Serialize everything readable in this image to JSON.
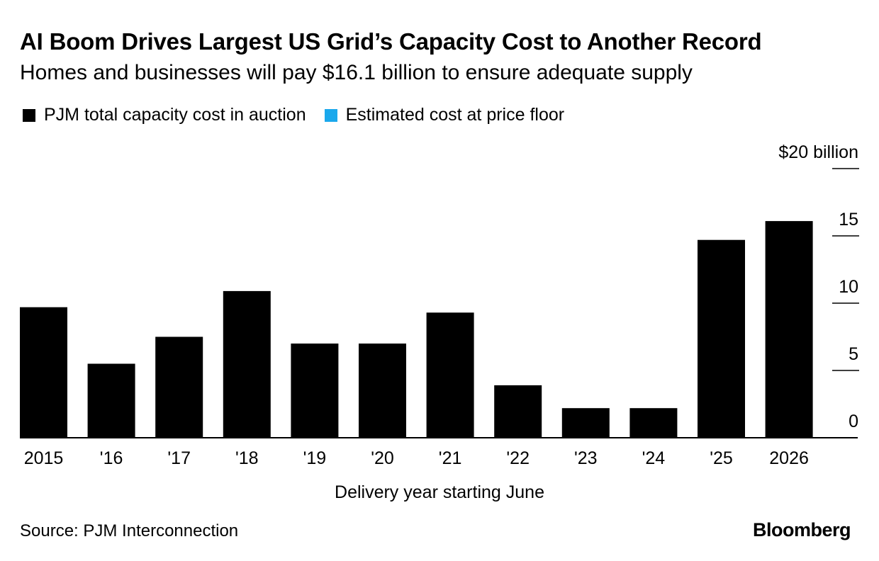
{
  "title": "AI Boom Drives Largest US Grid’s Capacity Cost to Another Record",
  "subtitle": "Homes and businesses will pay $16.1 billion to ensure adequate supply",
  "legend": [
    {
      "label": "PJM total capacity cost in auction",
      "color": "#000000"
    },
    {
      "label": "Estimated cost at price floor",
      "color": "#1aa8ec"
    }
  ],
  "source": "Source: PJM Interconnection",
  "brand": "Bloomberg",
  "chart_data": {
    "type": "bar",
    "categories": [
      "2015",
      "'16",
      "'17",
      "'18",
      "'19",
      "'20",
      "'21",
      "'22",
      "'23",
      "'24",
      "'25",
      "2026"
    ],
    "series": [
      {
        "name": "PJM total capacity cost in auction",
        "values": [
          9.7,
          5.5,
          7.5,
          10.9,
          7.0,
          7.0,
          9.3,
          3.9,
          2.2,
          2.2,
          14.7,
          16.1
        ],
        "color": "#000000"
      }
    ],
    "xlabel": "Delivery year starting June",
    "ylabel": "",
    "ylim": [
      0,
      20
    ],
    "yticks": [
      0,
      5,
      10,
      15,
      20
    ],
    "ytick_labels": [
      "0",
      "5",
      "10",
      "15",
      "$20 billion"
    ],
    "axis_side": "right",
    "legend_position": "top-left",
    "grid": false
  }
}
